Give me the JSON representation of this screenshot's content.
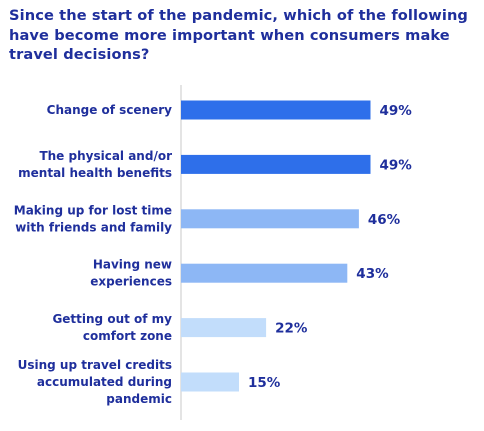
{
  "chart_data": {
    "type": "bar",
    "orientation": "horizontal",
    "title": "Since the start of the pandemic, which of the following have become more important when consumers make travel decisions?",
    "categories": [
      [
        "Change of scenery"
      ],
      [
        "The physical and/or",
        "mental health benefits"
      ],
      [
        "Making up for lost time",
        "with friends and family"
      ],
      [
        "Having new",
        "experiences"
      ],
      [
        "Getting out of my",
        "comfort zone"
      ],
      [
        "Using up travel credits",
        "accumulated during",
        "pandemic"
      ]
    ],
    "values": [
      49,
      49,
      46,
      43,
      22,
      15
    ],
    "value_labels": [
      "49%",
      "49%",
      "46%",
      "43%",
      "22%",
      "15%"
    ],
    "unit": "%",
    "bar_colors": [
      "#2e6fea",
      "#2e6fea",
      "#8db7f5",
      "#8db7f5",
      "#c2ddfb",
      "#c2ddfb"
    ],
    "text_color": "#1f2f9c",
    "axis_color": "#c8c8c8",
    "xlim": [
      0,
      53
    ],
    "grid": false,
    "legend": "none"
  }
}
